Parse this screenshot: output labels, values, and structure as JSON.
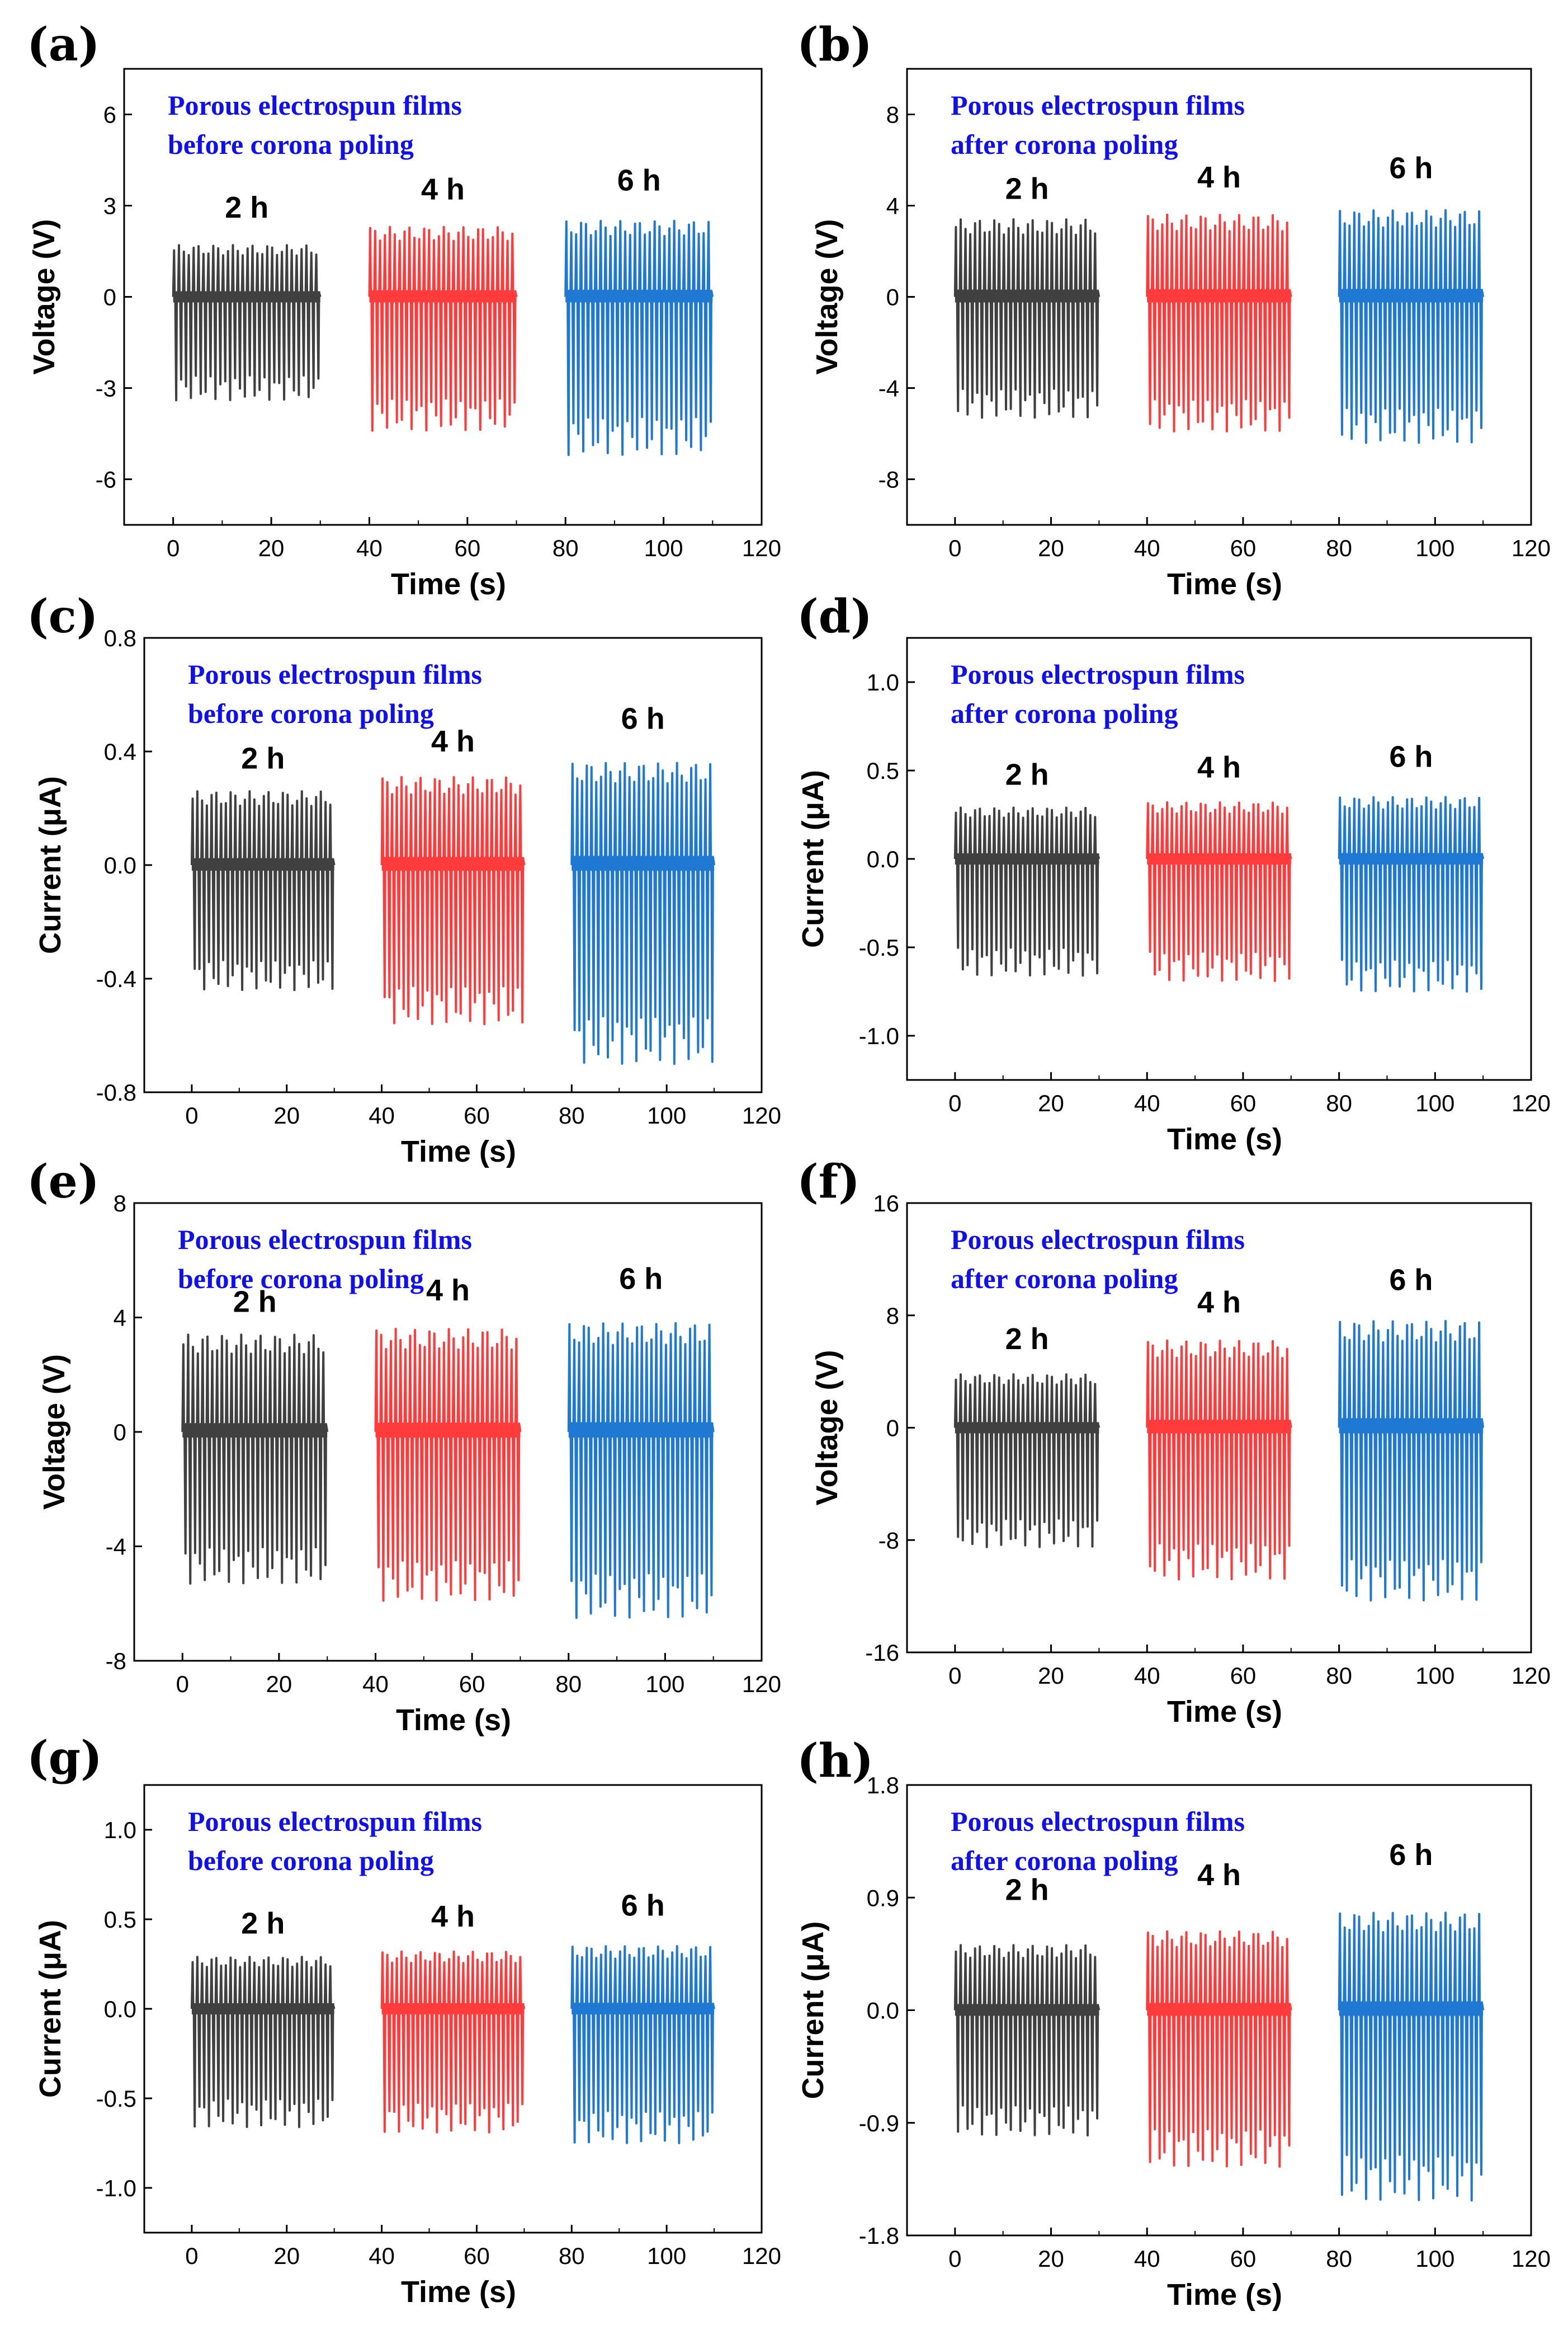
{
  "chart_data": [
    {
      "panel": "(a)",
      "type": "line",
      "title": "",
      "xlabel": "Time (s)",
      "ylabel": "Voltage (V)",
      "xlim": [
        -10,
        120
      ],
      "ylim": [
        -7.5,
        7.5
      ],
      "xticks": [
        "0",
        "20",
        "40",
        "60",
        "80",
        "100",
        "120"
      ],
      "yticks": [
        -6,
        -3,
        0,
        3,
        6
      ],
      "ytick_labels": [
        "-6",
        "-3",
        "0",
        "3",
        "6"
      ],
      "annotation": [
        "Porous electrospun films",
        "before corona poling"
      ],
      "series": [
        {
          "name": "2 h",
          "color": "#404040",
          "t_start": 0,
          "t_end": 30,
          "cycles": 30,
          "peak_max": 1.7,
          "peak_min": -3.4,
          "label_y": 2.6
        },
        {
          "name": "4 h",
          "color": "#ff3b3b",
          "t_start": 40,
          "t_end": 70,
          "cycles": 30,
          "peak_max": 2.3,
          "peak_min": -4.4,
          "label_y": 3.2
        },
        {
          "name": "6 h",
          "color": "#1f78d1",
          "t_start": 80,
          "t_end": 110,
          "cycles": 30,
          "peak_max": 2.5,
          "peak_min": -5.2,
          "label_y": 3.5
        }
      ]
    },
    {
      "panel": "(b)",
      "type": "line",
      "title": "",
      "xlabel": "Time (s)",
      "ylabel": "Voltage (V)",
      "xlim": [
        -10,
        120
      ],
      "ylim": [
        -10,
        10
      ],
      "xticks": [
        "0",
        "20",
        "40",
        "60",
        "80",
        "100",
        "120"
      ],
      "yticks": [
        -8,
        -4,
        0,
        4,
        8
      ],
      "ytick_labels": [
        "-8",
        "-4",
        "0",
        "4",
        "8"
      ],
      "annotation": [
        "Porous electrospun films",
        "after corona poling"
      ],
      "series": [
        {
          "name": "2 h",
          "color": "#404040",
          "t_start": 0,
          "t_end": 30,
          "cycles": 30,
          "peak_max": 3.4,
          "peak_min": -5.3,
          "label_y": 4.3
        },
        {
          "name": "4 h",
          "color": "#ff3b3b",
          "t_start": 40,
          "t_end": 70,
          "cycles": 30,
          "peak_max": 3.6,
          "peak_min": -5.9,
          "label_y": 4.8
        },
        {
          "name": "6 h",
          "color": "#1f78d1",
          "t_start": 80,
          "t_end": 110,
          "cycles": 30,
          "peak_max": 3.8,
          "peak_min": -6.4,
          "label_y": 5.2
        }
      ]
    },
    {
      "panel": "(c)",
      "type": "line",
      "title": "",
      "xlabel": "Time (s)",
      "ylabel": "Current (μA)",
      "xlim": [
        -10,
        120
      ],
      "ylim": [
        -0.8,
        0.8
      ],
      "xticks": [
        "0",
        "20",
        "40",
        "60",
        "80",
        "100",
        "120"
      ],
      "yticks": [
        -0.8,
        -0.4,
        0.0,
        0.4,
        0.8
      ],
      "ytick_labels": [
        "-0.8",
        "-0.4",
        "0.0",
        "0.4",
        "0.8"
      ],
      "annotation": [
        "Porous electrospun films",
        "before corona poling"
      ],
      "series": [
        {
          "name": "2 h",
          "color": "#404040",
          "t_start": 0,
          "t_end": 30,
          "cycles": 30,
          "peak_max": 0.26,
          "peak_min": -0.44,
          "label_y": 0.34
        },
        {
          "name": "4 h",
          "color": "#ff3b3b",
          "t_start": 40,
          "t_end": 70,
          "cycles": 30,
          "peak_max": 0.31,
          "peak_min": -0.56,
          "label_y": 0.4
        },
        {
          "name": "6 h",
          "color": "#1f78d1",
          "t_start": 80,
          "t_end": 110,
          "cycles": 30,
          "peak_max": 0.36,
          "peak_min": -0.7,
          "label_y": 0.48
        }
      ]
    },
    {
      "panel": "(d)",
      "type": "line",
      "title": "",
      "xlabel": "Time (s)",
      "ylabel": "Current (μA)",
      "xlim": [
        -10,
        120
      ],
      "ylim": [
        -1.25,
        1.25
      ],
      "xticks": [
        "0",
        "20",
        "40",
        "60",
        "80",
        "100",
        "120"
      ],
      "yticks": [
        -1.0,
        -0.5,
        0.0,
        0.5,
        1.0
      ],
      "ytick_labels": [
        "-1.0",
        "-0.5",
        "0.0",
        "0.5",
        "1.0"
      ],
      "annotation": [
        "Porous electrospun films",
        "after corona poling"
      ],
      "series": [
        {
          "name": "2 h",
          "color": "#404040",
          "t_start": 0,
          "t_end": 30,
          "cycles": 30,
          "peak_max": 0.29,
          "peak_min": -0.66,
          "label_y": 0.42
        },
        {
          "name": "4 h",
          "color": "#ff3b3b",
          "t_start": 40,
          "t_end": 70,
          "cycles": 30,
          "peak_max": 0.32,
          "peak_min": -0.69,
          "label_y": 0.46
        },
        {
          "name": "6 h",
          "color": "#1f78d1",
          "t_start": 80,
          "t_end": 110,
          "cycles": 30,
          "peak_max": 0.35,
          "peak_min": -0.75,
          "label_y": 0.52
        }
      ]
    },
    {
      "panel": "(e)",
      "type": "line",
      "title": "",
      "xlabel": "Time (s)",
      "ylabel": "Voltage (V)",
      "xlim": [
        -10,
        120
      ],
      "ylim": [
        -8,
        8
      ],
      "xticks": [
        "0",
        "20",
        "40",
        "60",
        "80",
        "100",
        "120"
      ],
      "yticks": [
        -8,
        -4,
        0,
        4,
        8
      ],
      "ytick_labels": [
        "-8",
        "-4",
        "0",
        "4",
        "8"
      ],
      "annotation": [
        "Porous electrospun films",
        "before corona poling"
      ],
      "series": [
        {
          "name": "2 h",
          "color": "#404040",
          "t_start": 0,
          "t_end": 30,
          "cycles": 30,
          "peak_max": 3.4,
          "peak_min": -5.3,
          "label_y": 4.2
        },
        {
          "name": "4 h",
          "color": "#ff3b3b",
          "t_start": 40,
          "t_end": 70,
          "cycles": 30,
          "peak_max": 3.6,
          "peak_min": -5.9,
          "label_y": 4.6
        },
        {
          "name": "6 h",
          "color": "#1f78d1",
          "t_start": 80,
          "t_end": 110,
          "cycles": 30,
          "peak_max": 3.8,
          "peak_min": -6.5,
          "label_y": 5.0
        }
      ]
    },
    {
      "panel": "(f)",
      "type": "line",
      "title": "",
      "xlabel": "Time (s)",
      "ylabel": "Voltage (V)",
      "xlim": [
        -10,
        120
      ],
      "ylim": [
        -16,
        16
      ],
      "xticks": [
        "0",
        "20",
        "40",
        "60",
        "80",
        "100",
        "120"
      ],
      "yticks": [
        -16,
        -8,
        0,
        8,
        16
      ],
      "ytick_labels": [
        "-16",
        "-8",
        "0",
        "8",
        "16"
      ],
      "annotation": [
        "Porous electrospun films",
        "after corona poling"
      ],
      "series": [
        {
          "name": "2 h",
          "color": "#404040",
          "t_start": 0,
          "t_end": 30,
          "cycles": 30,
          "peak_max": 3.8,
          "peak_min": -8.5,
          "label_y": 5.6
        },
        {
          "name": "4 h",
          "color": "#ff3b3b",
          "t_start": 40,
          "t_end": 70,
          "cycles": 30,
          "peak_max": 6.2,
          "peak_min": -10.8,
          "label_y": 8.2
        },
        {
          "name": "6 h",
          "color": "#1f78d1",
          "t_start": 80,
          "t_end": 110,
          "cycles": 30,
          "peak_max": 7.6,
          "peak_min": -12.3,
          "label_y": 9.8
        }
      ]
    },
    {
      "panel": "(g)",
      "type": "line",
      "title": "",
      "xlabel": "Time (s)",
      "ylabel": "Current (μA)",
      "xlim": [
        -10,
        120
      ],
      "ylim": [
        -1.25,
        1.25
      ],
      "xticks": [
        "0",
        "20",
        "40",
        "60",
        "80",
        "100",
        "120"
      ],
      "yticks": [
        -1.0,
        -0.5,
        0.0,
        0.5,
        1.0
      ],
      "ytick_labels": [
        "-1.0",
        "-0.5",
        "0.0",
        "0.5",
        "1.0"
      ],
      "annotation": [
        "Porous electrospun films",
        "before corona poling"
      ],
      "series": [
        {
          "name": "2 h",
          "color": "#404040",
          "t_start": 0,
          "t_end": 30,
          "cycles": 30,
          "peak_max": 0.29,
          "peak_min": -0.66,
          "label_y": 0.42
        },
        {
          "name": "4 h",
          "color": "#ff3b3b",
          "t_start": 40,
          "t_end": 70,
          "cycles": 30,
          "peak_max": 0.32,
          "peak_min": -0.69,
          "label_y": 0.46
        },
        {
          "name": "6 h",
          "color": "#1f78d1",
          "t_start": 80,
          "t_end": 110,
          "cycles": 30,
          "peak_max": 0.35,
          "peak_min": -0.75,
          "label_y": 0.52
        }
      ]
    },
    {
      "panel": "(h)",
      "type": "line",
      "title": "",
      "xlabel": "Time (s)",
      "ylabel": "Current (μA)",
      "xlim": [
        -10,
        120
      ],
      "ylim": [
        -1.8,
        1.8
      ],
      "xticks": [
        "0",
        "20",
        "40",
        "60",
        "80",
        "100",
        "120"
      ],
      "yticks": [
        -1.8,
        -0.9,
        0.0,
        0.9,
        1.8
      ],
      "ytick_labels": [
        "-1.8",
        "-0.9",
        "0.0",
        "0.9",
        "1.8"
      ],
      "annotation": [
        "Porous electrospun films",
        "after corona poling"
      ],
      "series": [
        {
          "name": "2 h",
          "color": "#404040",
          "t_start": 0,
          "t_end": 30,
          "cycles": 30,
          "peak_max": 0.52,
          "peak_min": -1.0,
          "label_y": 0.88
        },
        {
          "name": "4 h",
          "color": "#ff3b3b",
          "t_start": 40,
          "t_end": 70,
          "cycles": 30,
          "peak_max": 0.63,
          "peak_min": -1.25,
          "label_y": 1.0
        },
        {
          "name": "6 h",
          "color": "#1f78d1",
          "t_start": 80,
          "t_end": 110,
          "cycles": 30,
          "peak_max": 0.78,
          "peak_min": -1.52,
          "label_y": 1.16
        }
      ]
    }
  ],
  "colors": {
    "axis": "#000000",
    "annotation": "#1010ee"
  }
}
